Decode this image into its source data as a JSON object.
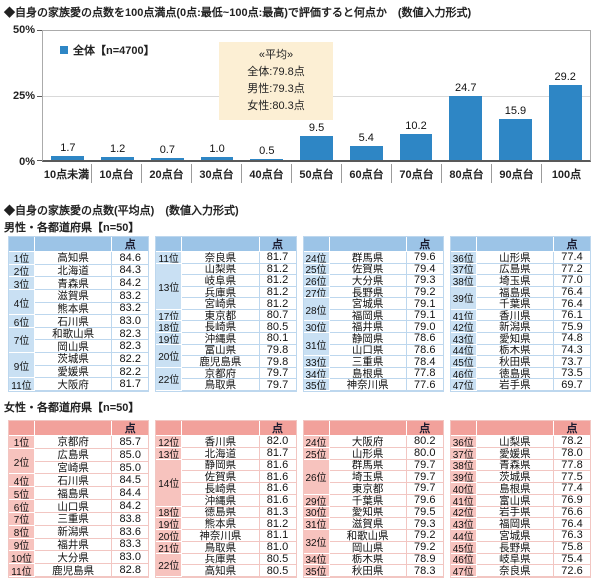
{
  "titles": {
    "chart_title": "◆自身の家族愛の点数を100点満点(0点:最低~100点:最高)で評価すると何点か　(数値入力形式)",
    "section2_title": "◆自身の家族愛の点数(平均点)　(数値入力形式)"
  },
  "legend": {
    "series_label": "全体【n=4700】"
  },
  "averages_box": {
    "title": "«平均»",
    "lines": [
      "全体:79.8点",
      "男性:79.3点",
      "女性:80.3点"
    ]
  },
  "colors": {
    "bar_color": "#2E86C5",
    "avg_box_bg": "#FCEFD4",
    "male_header": "#9CC4E7",
    "male_rank": "#C9E0F3",
    "male_line": "#BDD7EE",
    "female_header": "#F2A19B",
    "female_rank": "#F7C3BE",
    "female_line": "#F2C6C2"
  },
  "chart_data": [
    {
      "type": "bar",
      "title": "◆自身の家族愛の点数を100点満点(0点:最低~100点:最高)で評価すると何点か　(数値入力形式)",
      "series_name": "全体【n=4700】",
      "categories": [
        "10点未満",
        "10点台",
        "20点台",
        "30点台",
        "40点台",
        "50点台",
        "60点台",
        "70点台",
        "80点台",
        "90点台",
        "100点"
      ],
      "values": [
        1.7,
        1.2,
        0.7,
        1.0,
        0.5,
        9.5,
        5.4,
        10.2,
        24.7,
        15.9,
        29.2
      ],
      "ylim": [
        0,
        50
      ],
      "y_tick_labels": [
        "0%",
        "25%",
        "50%"
      ],
      "grid": true,
      "legend_position": "top-left",
      "averages": {
        "全体": 79.8,
        "男性": 79.3,
        "女性": 80.3
      }
    },
    {
      "type": "table",
      "title": "男性・各都道府県【n=50】",
      "score_header": "点",
      "groups": [
        [
          {
            "rank": "1位",
            "rows": [
              [
                "高知県",
                "84.6"
              ]
            ]
          },
          {
            "rank": "2位",
            "rows": [
              [
                "北海道",
                "84.3"
              ]
            ]
          },
          {
            "rank": "3位",
            "rows": [
              [
                "青森県",
                "84.2"
              ]
            ]
          },
          {
            "rank": "4位",
            "rows": [
              [
                "滋賀県",
                "83.2"
              ],
              [
                "熊本県",
                "83.2"
              ]
            ]
          },
          {
            "rank": "6位",
            "rows": [
              [
                "石川県",
                "83.0"
              ]
            ]
          },
          {
            "rank": "7位",
            "rows": [
              [
                "和歌山県",
                "82.3"
              ],
              [
                "岡山県",
                "82.3"
              ]
            ]
          },
          {
            "rank": "9位",
            "rows": [
              [
                "茨城県",
                "82.2"
              ],
              [
                "愛媛県",
                "82.2"
              ]
            ]
          },
          {
            "rank": "11位",
            "rows": [
              [
                "大阪府",
                "81.7"
              ]
            ]
          }
        ],
        [
          {
            "rank": "11位",
            "rows": [
              [
                "奈良県",
                "81.7"
              ]
            ]
          },
          {
            "rank": "13位",
            "rows": [
              [
                "山梨県",
                "81.2"
              ],
              [
                "岐阜県",
                "81.2"
              ],
              [
                "兵庫県",
                "81.2"
              ],
              [
                "宮崎県",
                "81.2"
              ]
            ]
          },
          {
            "rank": "17位",
            "rows": [
              [
                "東京都",
                "80.7"
              ]
            ]
          },
          {
            "rank": "18位",
            "rows": [
              [
                "長崎県",
                "80.5"
              ]
            ]
          },
          {
            "rank": "19位",
            "rows": [
              [
                "沖縄県",
                "80.1"
              ]
            ]
          },
          {
            "rank": "20位",
            "rows": [
              [
                "富山県",
                "79.8"
              ],
              [
                "鹿児島県",
                "79.8"
              ]
            ]
          },
          {
            "rank": "22位",
            "rows": [
              [
                "京都府",
                "79.7"
              ],
              [
                "鳥取県",
                "79.7"
              ]
            ]
          }
        ],
        [
          {
            "rank": "24位",
            "rows": [
              [
                "群馬県",
                "79.6"
              ]
            ]
          },
          {
            "rank": "25位",
            "rows": [
              [
                "佐賀県",
                "79.4"
              ]
            ]
          },
          {
            "rank": "26位",
            "rows": [
              [
                "大分県",
                "79.3"
              ]
            ]
          },
          {
            "rank": "27位",
            "rows": [
              [
                "長野県",
                "79.2"
              ]
            ]
          },
          {
            "rank": "28位",
            "rows": [
              [
                "宮城県",
                "79.1"
              ],
              [
                "福岡県",
                "79.1"
              ]
            ]
          },
          {
            "rank": "30位",
            "rows": [
              [
                "福井県",
                "79.0"
              ]
            ]
          },
          {
            "rank": "31位",
            "rows": [
              [
                "静岡県",
                "78.6"
              ],
              [
                "山口県",
                "78.6"
              ]
            ]
          },
          {
            "rank": "33位",
            "rows": [
              [
                "三重県",
                "78.4"
              ]
            ]
          },
          {
            "rank": "34位",
            "rows": [
              [
                "島根県",
                "77.8"
              ]
            ]
          },
          {
            "rank": "35位",
            "rows": [
              [
                "神奈川県",
                "77.6"
              ]
            ]
          }
        ],
        [
          {
            "rank": "36位",
            "rows": [
              [
                "山形県",
                "77.4"
              ]
            ]
          },
          {
            "rank": "37位",
            "rows": [
              [
                "広島県",
                "77.2"
              ]
            ]
          },
          {
            "rank": "38位",
            "rows": [
              [
                "埼玉県",
                "77.0"
              ]
            ]
          },
          {
            "rank": "39位",
            "rows": [
              [
                "福島県",
                "76.4"
              ],
              [
                "千葉県",
                "76.4"
              ]
            ]
          },
          {
            "rank": "41位",
            "rows": [
              [
                "香川県",
                "76.1"
              ]
            ]
          },
          {
            "rank": "42位",
            "rows": [
              [
                "新潟県",
                "75.9"
              ]
            ]
          },
          {
            "rank": "43位",
            "rows": [
              [
                "愛知県",
                "74.8"
              ]
            ]
          },
          {
            "rank": "44位",
            "rows": [
              [
                "栃木県",
                "74.3"
              ]
            ]
          },
          {
            "rank": "45位",
            "rows": [
              [
                "秋田県",
                "73.7"
              ]
            ]
          },
          {
            "rank": "46位",
            "rows": [
              [
                "徳島県",
                "73.5"
              ]
            ]
          },
          {
            "rank": "47位",
            "rows": [
              [
                "岩手県",
                "69.7"
              ]
            ]
          }
        ]
      ]
    },
    {
      "type": "table",
      "title": "女性・各都道府県【n=50】",
      "score_header": "点",
      "groups": [
        [
          {
            "rank": "1位",
            "rows": [
              [
                "京都府",
                "85.7"
              ]
            ]
          },
          {
            "rank": "2位",
            "rows": [
              [
                "広島県",
                "85.0"
              ],
              [
                "宮崎県",
                "85.0"
              ]
            ]
          },
          {
            "rank": "4位",
            "rows": [
              [
                "石川県",
                "84.5"
              ]
            ]
          },
          {
            "rank": "5位",
            "rows": [
              [
                "福島県",
                "84.4"
              ]
            ]
          },
          {
            "rank": "6位",
            "rows": [
              [
                "山口県",
                "84.2"
              ]
            ]
          },
          {
            "rank": "7位",
            "rows": [
              [
                "三重県",
                "83.8"
              ]
            ]
          },
          {
            "rank": "8位",
            "rows": [
              [
                "新潟県",
                "83.6"
              ]
            ]
          },
          {
            "rank": "9位",
            "rows": [
              [
                "福井県",
                "83.3"
              ]
            ]
          },
          {
            "rank": "10位",
            "rows": [
              [
                "大分県",
                "83.0"
              ]
            ]
          },
          {
            "rank": "11位",
            "rows": [
              [
                "鹿児島県",
                "82.8"
              ]
            ]
          }
        ],
        [
          {
            "rank": "12位",
            "rows": [
              [
                "香川県",
                "82.0"
              ]
            ]
          },
          {
            "rank": "13位",
            "rows": [
              [
                "北海道",
                "81.7"
              ]
            ]
          },
          {
            "rank": "14位",
            "rows": [
              [
                "静岡県",
                "81.6"
              ],
              [
                "佐賀県",
                "81.6"
              ],
              [
                "長崎県",
                "81.6"
              ],
              [
                "沖縄県",
                "81.6"
              ]
            ]
          },
          {
            "rank": "18位",
            "rows": [
              [
                "徳島県",
                "81.3"
              ]
            ]
          },
          {
            "rank": "19位",
            "rows": [
              [
                "熊本県",
                "81.2"
              ]
            ]
          },
          {
            "rank": "20位",
            "rows": [
              [
                "神奈川県",
                "81.1"
              ]
            ]
          },
          {
            "rank": "21位",
            "rows": [
              [
                "鳥取県",
                "81.0"
              ]
            ]
          },
          {
            "rank": "22位",
            "rows": [
              [
                "兵庫県",
                "80.5"
              ],
              [
                "高知県",
                "80.5"
              ]
            ]
          }
        ],
        [
          {
            "rank": "24位",
            "rows": [
              [
                "大阪府",
                "80.2"
              ]
            ]
          },
          {
            "rank": "25位",
            "rows": [
              [
                "山形県",
                "80.0"
              ]
            ]
          },
          {
            "rank": "26位",
            "rows": [
              [
                "群馬県",
                "79.7"
              ],
              [
                "埼玉県",
                "79.7"
              ],
              [
                "東京都",
                "79.7"
              ]
            ]
          },
          {
            "rank": "29位",
            "rows": [
              [
                "千葉県",
                "79.6"
              ]
            ]
          },
          {
            "rank": "30位",
            "rows": [
              [
                "愛知県",
                "79.5"
              ]
            ]
          },
          {
            "rank": "31位",
            "rows": [
              [
                "滋賀県",
                "79.3"
              ]
            ]
          },
          {
            "rank": "32位",
            "rows": [
              [
                "和歌山県",
                "79.2"
              ],
              [
                "岡山県",
                "79.2"
              ]
            ]
          },
          {
            "rank": "34位",
            "rows": [
              [
                "栃木県",
                "78.9"
              ]
            ]
          },
          {
            "rank": "35位",
            "rows": [
              [
                "秋田県",
                "78.3"
              ]
            ]
          }
        ],
        [
          {
            "rank": "36位",
            "rows": [
              [
                "山梨県",
                "78.2"
              ]
            ]
          },
          {
            "rank": "37位",
            "rows": [
              [
                "愛媛県",
                "78.0"
              ]
            ]
          },
          {
            "rank": "38位",
            "rows": [
              [
                "青森県",
                "77.8"
              ]
            ]
          },
          {
            "rank": "39位",
            "rows": [
              [
                "茨城県",
                "77.5"
              ]
            ]
          },
          {
            "rank": "40位",
            "rows": [
              [
                "島根県",
                "77.4"
              ]
            ]
          },
          {
            "rank": "41位",
            "rows": [
              [
                "富山県",
                "76.9"
              ]
            ]
          },
          {
            "rank": "42位",
            "rows": [
              [
                "岩手県",
                "76.6"
              ]
            ]
          },
          {
            "rank": "43位",
            "rows": [
              [
                "福岡県",
                "76.4"
              ]
            ]
          },
          {
            "rank": "44位",
            "rows": [
              [
                "宮城県",
                "76.3"
              ]
            ]
          },
          {
            "rank": "45位",
            "rows": [
              [
                "長野県",
                "75.8"
              ]
            ]
          },
          {
            "rank": "46位",
            "rows": [
              [
                "岐阜県",
                "75.4"
              ]
            ]
          },
          {
            "rank": "47位",
            "rows": [
              [
                "奈良県",
                "72.6"
              ]
            ]
          }
        ]
      ]
    }
  ]
}
